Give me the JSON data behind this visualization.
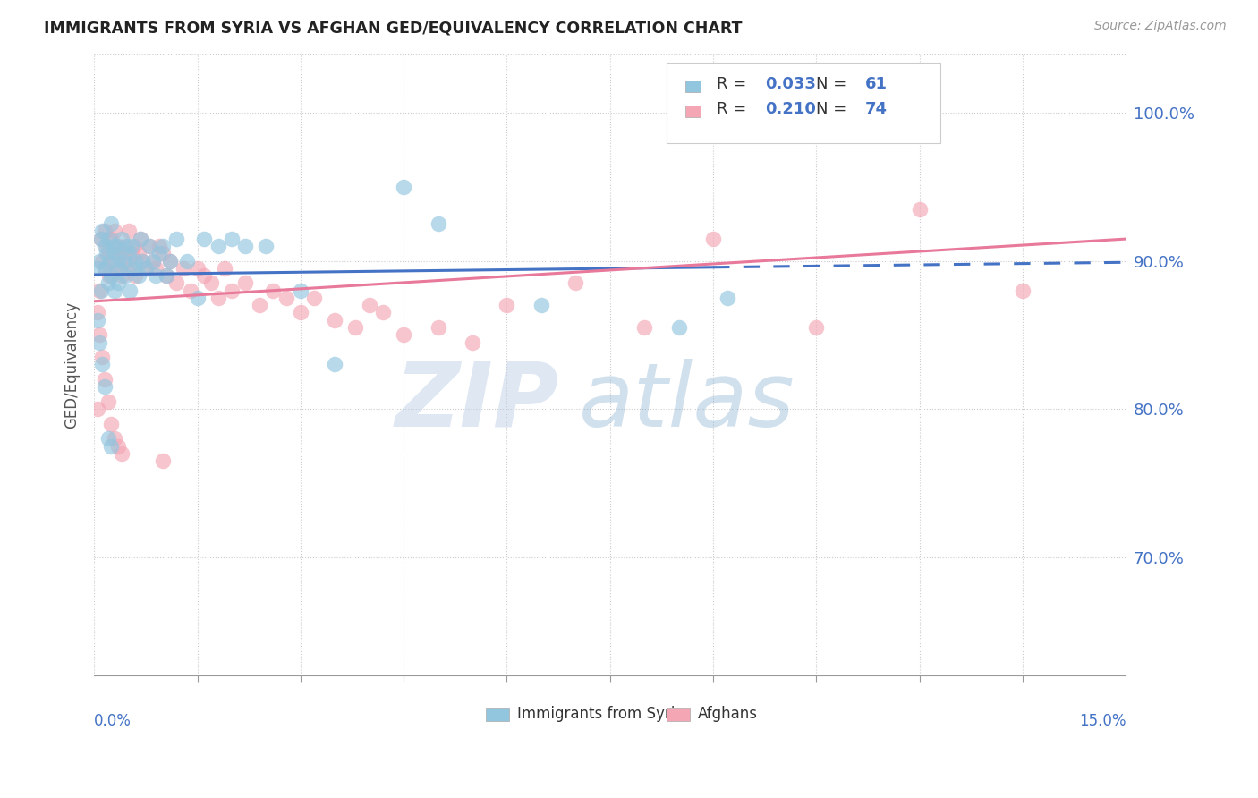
{
  "title": "IMMIGRANTS FROM SYRIA VS AFGHAN GED/EQUIVALENCY CORRELATION CHART",
  "source": "Source: ZipAtlas.com",
  "ylabel": "GED/Equivalency",
  "xlim": [
    0.0,
    15.0
  ],
  "ylim": [
    62.0,
    104.0
  ],
  "yticks": [
    70.0,
    80.0,
    90.0,
    100.0
  ],
  "color_syria": "#92C5DE",
  "color_afghan": "#F4A6B5",
  "color_blue_text": "#4472C4",
  "color_pink_line": "#E8799A",
  "color_blue_line": "#4472C4",
  "legend_r1": "0.033",
  "legend_n1": "61",
  "legend_r2": "0.210",
  "legend_n2": "74",
  "syria_x": [
    0.05,
    0.08,
    0.1,
    0.1,
    0.12,
    0.15,
    0.15,
    0.18,
    0.2,
    0.2,
    0.22,
    0.25,
    0.25,
    0.28,
    0.3,
    0.3,
    0.32,
    0.35,
    0.35,
    0.38,
    0.4,
    0.42,
    0.45,
    0.48,
    0.5,
    0.52,
    0.55,
    0.58,
    0.6,
    0.65,
    0.68,
    0.7,
    0.75,
    0.8,
    0.85,
    0.9,
    0.95,
    1.0,
    1.05,
    1.1,
    1.2,
    1.35,
    1.5,
    1.6,
    1.8,
    2.0,
    2.2,
    2.5,
    3.0,
    3.5,
    4.5,
    5.0,
    6.5,
    8.5,
    9.2,
    0.05,
    0.08,
    0.12,
    0.15,
    0.2,
    0.25
  ],
  "syria_y": [
    89.5,
    90.0,
    91.5,
    88.0,
    92.0,
    91.0,
    89.5,
    90.5,
    91.5,
    88.5,
    90.0,
    92.5,
    89.0,
    91.0,
    90.5,
    88.0,
    91.0,
    90.0,
    88.5,
    89.5,
    91.5,
    90.0,
    89.0,
    91.0,
    90.5,
    88.0,
    91.0,
    89.5,
    90.0,
    89.0,
    91.5,
    90.0,
    89.5,
    91.0,
    90.0,
    89.0,
    90.5,
    91.0,
    89.0,
    90.0,
    91.5,
    90.0,
    87.5,
    91.5,
    91.0,
    91.5,
    91.0,
    91.0,
    88.0,
    83.0,
    95.0,
    92.5,
    87.0,
    85.5,
    87.5,
    86.0,
    84.5,
    83.0,
    81.5,
    78.0,
    77.5
  ],
  "afghan_x": [
    0.05,
    0.08,
    0.1,
    0.12,
    0.15,
    0.15,
    0.18,
    0.2,
    0.22,
    0.25,
    0.28,
    0.3,
    0.32,
    0.35,
    0.38,
    0.4,
    0.42,
    0.45,
    0.48,
    0.5,
    0.52,
    0.55,
    0.58,
    0.6,
    0.65,
    0.68,
    0.7,
    0.75,
    0.8,
    0.85,
    0.9,
    0.95,
    1.0,
    1.05,
    1.1,
    1.2,
    1.3,
    1.4,
    1.5,
    1.6,
    1.7,
    1.8,
    1.9,
    2.0,
    2.2,
    2.4,
    2.6,
    2.8,
    3.0,
    3.2,
    3.5,
    3.8,
    4.0,
    4.2,
    4.5,
    5.0,
    5.5,
    6.0,
    7.0,
    8.0,
    9.0,
    10.5,
    12.0,
    13.5,
    0.05,
    0.08,
    0.12,
    0.15,
    0.2,
    0.25,
    0.3,
    0.35,
    0.4,
    1.0
  ],
  "afghan_y": [
    80.0,
    88.0,
    91.5,
    90.0,
    92.0,
    89.5,
    91.0,
    90.5,
    89.0,
    91.5,
    90.0,
    92.0,
    89.5,
    91.0,
    90.5,
    89.0,
    90.5,
    91.0,
    90.0,
    92.0,
    89.5,
    90.5,
    91.0,
    89.0,
    90.5,
    91.5,
    90.0,
    89.5,
    91.0,
    90.0,
    89.5,
    91.0,
    90.5,
    89.0,
    90.0,
    88.5,
    89.5,
    88.0,
    89.5,
    89.0,
    88.5,
    87.5,
    89.5,
    88.0,
    88.5,
    87.0,
    88.0,
    87.5,
    86.5,
    87.5,
    86.0,
    85.5,
    87.0,
    86.5,
    85.0,
    85.5,
    84.5,
    87.0,
    88.5,
    85.5,
    91.5,
    85.5,
    93.5,
    88.0,
    86.5,
    85.0,
    83.5,
    82.0,
    80.5,
    79.0,
    78.0,
    77.5,
    77.0,
    76.5
  ]
}
